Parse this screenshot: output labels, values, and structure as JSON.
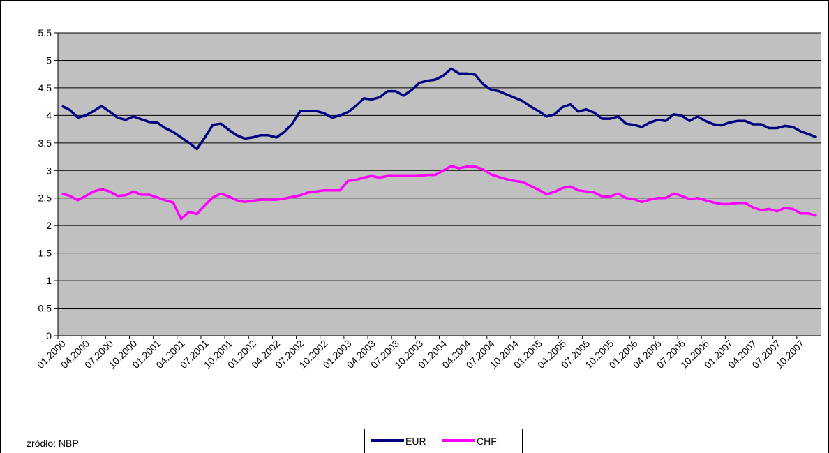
{
  "chart_data": {
    "type": "line",
    "categories": [
      "01.2000",
      null,
      null,
      "04.2000",
      null,
      null,
      "07.2000",
      null,
      null,
      "10.2000",
      null,
      null,
      "01.2001",
      null,
      null,
      "04.2001",
      null,
      null,
      "07.2001",
      null,
      null,
      "10.2001",
      null,
      null,
      "01.2002",
      null,
      null,
      "04.2002",
      null,
      null,
      "07.2002",
      null,
      null,
      "10.2002",
      null,
      null,
      "01.2003",
      null,
      null,
      "04.2003",
      null,
      null,
      "07.2003",
      null,
      null,
      "10.2003",
      null,
      null,
      "01.2004",
      null,
      null,
      "04.2004",
      null,
      null,
      "07.2004",
      null,
      null,
      "10.2004",
      null,
      null,
      "01.2005",
      null,
      null,
      "04.2005",
      null,
      null,
      "07.2005",
      null,
      null,
      "10.2005",
      null,
      null,
      "01.2006",
      null,
      null,
      "04.2006",
      null,
      null,
      "07.2006",
      null,
      null,
      "10.2006",
      null,
      null,
      "01.2007",
      null,
      null,
      "04.2007",
      null,
      null,
      "07.2007",
      null,
      null,
      "10.2007",
      null,
      null
    ],
    "series": [
      {
        "name": "EUR",
        "color": "#000080",
        "values": [
          4.17,
          4.1,
          3.96,
          4.0,
          4.08,
          4.17,
          4.07,
          3.96,
          3.92,
          3.98,
          3.93,
          3.88,
          3.87,
          3.77,
          3.7,
          3.6,
          3.5,
          3.39,
          3.6,
          3.83,
          3.85,
          3.74,
          3.64,
          3.58,
          3.6,
          3.64,
          3.64,
          3.6,
          3.7,
          3.85,
          4.08,
          4.08,
          4.08,
          4.04,
          3.96,
          4.0,
          4.06,
          4.17,
          4.31,
          4.29,
          4.33,
          4.44,
          4.44,
          4.36,
          4.46,
          4.59,
          4.63,
          4.65,
          4.72,
          4.85,
          4.76,
          4.76,
          4.74,
          4.57,
          4.47,
          4.44,
          4.38,
          4.32,
          4.26,
          4.16,
          4.08,
          3.98,
          4.02,
          4.15,
          4.2,
          4.07,
          4.11,
          4.05,
          3.94,
          3.94,
          3.98,
          3.85,
          3.83,
          3.79,
          3.87,
          3.92,
          3.9,
          4.02,
          4.0,
          3.9,
          3.98,
          3.9,
          3.84,
          3.82,
          3.87,
          3.9,
          3.9,
          3.84,
          3.84,
          3.77,
          3.77,
          3.81,
          3.79,
          3.71,
          3.66,
          3.6
        ]
      },
      {
        "name": "CHF",
        "color": "#ff00ff",
        "values": [
          2.58,
          2.54,
          2.46,
          2.54,
          2.62,
          2.66,
          2.62,
          2.54,
          2.55,
          2.62,
          2.56,
          2.56,
          2.51,
          2.46,
          2.42,
          2.12,
          2.25,
          2.21,
          2.37,
          2.51,
          2.58,
          2.53,
          2.46,
          2.43,
          2.45,
          2.47,
          2.47,
          2.47,
          2.49,
          2.52,
          2.55,
          2.6,
          2.62,
          2.64,
          2.64,
          2.64,
          2.81,
          2.83,
          2.87,
          2.9,
          2.87,
          2.9,
          2.9,
          2.9,
          2.9,
          2.9,
          2.92,
          2.92,
          3.0,
          3.08,
          3.04,
          3.07,
          3.07,
          3.02,
          2.93,
          2.88,
          2.84,
          2.81,
          2.79,
          2.72,
          2.65,
          2.57,
          2.61,
          2.68,
          2.71,
          2.64,
          2.62,
          2.6,
          2.53,
          2.53,
          2.58,
          2.5,
          2.48,
          2.43,
          2.47,
          2.5,
          2.5,
          2.58,
          2.54,
          2.48,
          2.5,
          2.46,
          2.42,
          2.39,
          2.39,
          2.41,
          2.41,
          2.33,
          2.28,
          2.3,
          2.26,
          2.32,
          2.3,
          2.22,
          2.22,
          2.18
        ]
      }
    ],
    "ylim": [
      0,
      5.5
    ],
    "yticks": [
      0,
      {
        "value": 0.5,
        "label": "0,5"
      },
      1,
      {
        "value": 1.5,
        "label": "1,5"
      },
      2,
      {
        "value": 2.5,
        "label": "2,5"
      },
      3,
      {
        "value": 3.5,
        "label": "3,5"
      },
      4,
      {
        "value": 4.5,
        "label": "4,5"
      },
      5,
      {
        "value": 5.5,
        "label": "5,5"
      }
    ],
    "grid": true,
    "annotation": "źródło: NBP",
    "legend": "bottom"
  }
}
